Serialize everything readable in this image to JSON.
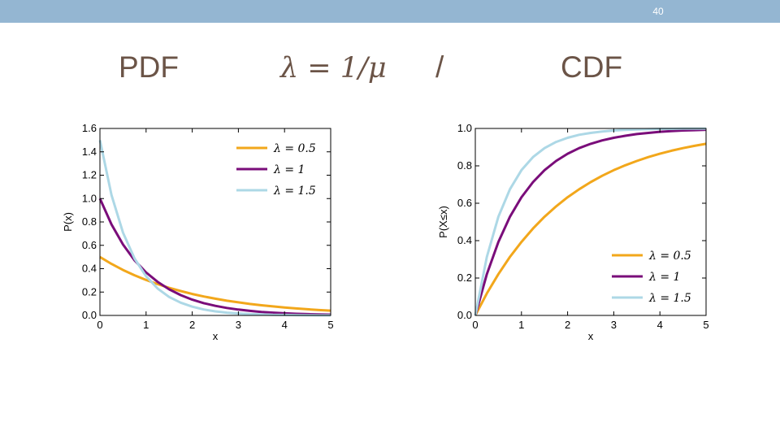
{
  "slide": {
    "number": "40",
    "heading_left": "PDF",
    "heading_formula": "λ = 1/μ",
    "heading_sep": "/",
    "heading_right": "CDF"
  },
  "colors": {
    "topbar": "#94b6d2",
    "heading": "#6b5447"
  },
  "chart_data": [
    {
      "type": "line",
      "title": "",
      "xlabel": "x",
      "ylabel": "P(x)",
      "xlim": [
        0,
        5
      ],
      "ylim": [
        0,
        1.6
      ],
      "xticks": [
        "0",
        "1",
        "2",
        "3",
        "4",
        "5"
      ],
      "yticks": [
        "0.0",
        "0.2",
        "0.4",
        "0.6",
        "0.8",
        "1.0",
        "1.2",
        "1.4",
        "1.6"
      ],
      "grid": false,
      "legend": "top-right",
      "x": [
        0,
        0.25,
        0.5,
        0.75,
        1,
        1.25,
        1.5,
        1.75,
        2,
        2.25,
        2.5,
        2.75,
        3,
        3.25,
        3.5,
        3.75,
        4,
        4.25,
        4.5,
        4.75,
        5
      ],
      "series": [
        {
          "name": "λ = 0.5",
          "color": "#f2a71b",
          "values": [
            0.5,
            0.441,
            0.389,
            0.344,
            0.303,
            0.268,
            0.236,
            0.209,
            0.184,
            0.162,
            0.143,
            0.126,
            0.112,
            0.098,
            0.087,
            0.077,
            0.068,
            0.06,
            0.053,
            0.046,
            0.041
          ]
        },
        {
          "name": "λ = 1",
          "color": "#7a0d7a",
          "values": [
            1.0,
            0.779,
            0.607,
            0.472,
            0.368,
            0.287,
            0.223,
            0.174,
            0.135,
            0.105,
            0.082,
            0.064,
            0.05,
            0.039,
            0.03,
            0.024,
            0.018,
            0.014,
            0.011,
            0.009,
            0.007
          ]
        },
        {
          "name": "λ = 1.5",
          "color": "#add8e6",
          "values": [
            1.5,
            1.031,
            0.708,
            0.487,
            0.335,
            0.23,
            0.158,
            0.109,
            0.075,
            0.051,
            0.035,
            0.024,
            0.017,
            0.011,
            0.008,
            0.005,
            0.004,
            0.003,
            0.002,
            0.001,
            0.001
          ]
        }
      ]
    },
    {
      "type": "line",
      "title": "",
      "xlabel": "x",
      "ylabel": "P(X≤x)",
      "xlim": [
        0,
        5
      ],
      "ylim": [
        0,
        1.0
      ],
      "xticks": [
        "0",
        "1",
        "2",
        "3",
        "4",
        "5"
      ],
      "yticks": [
        "0.0",
        "0.2",
        "0.4",
        "0.6",
        "0.8",
        "1.0"
      ],
      "grid": false,
      "legend": "bottom-right",
      "x": [
        0,
        0.25,
        0.5,
        0.75,
        1,
        1.25,
        1.5,
        1.75,
        2,
        2.25,
        2.5,
        2.75,
        3,
        3.25,
        3.5,
        3.75,
        4,
        4.25,
        4.5,
        4.75,
        5
      ],
      "series": [
        {
          "name": "λ = 0.5",
          "color": "#f2a71b",
          "values": [
            0,
            0.118,
            0.221,
            0.313,
            0.393,
            0.465,
            0.528,
            0.583,
            0.632,
            0.675,
            0.713,
            0.747,
            0.777,
            0.803,
            0.826,
            0.847,
            0.865,
            0.881,
            0.895,
            0.907,
            0.918
          ]
        },
        {
          "name": "λ = 1",
          "color": "#7a0d7a",
          "values": [
            0,
            0.221,
            0.393,
            0.528,
            0.632,
            0.713,
            0.777,
            0.826,
            0.865,
            0.895,
            0.918,
            0.936,
            0.95,
            0.961,
            0.97,
            0.976,
            0.982,
            0.986,
            0.989,
            0.991,
            0.993
          ]
        },
        {
          "name": "λ = 1.5",
          "color": "#add8e6",
          "values": [
            0,
            0.313,
            0.528,
            0.675,
            0.777,
            0.847,
            0.895,
            0.928,
            0.95,
            0.966,
            0.976,
            0.984,
            0.989,
            0.992,
            0.995,
            0.996,
            0.998,
            0.998,
            0.999,
            0.999,
            0.999
          ]
        }
      ]
    }
  ]
}
